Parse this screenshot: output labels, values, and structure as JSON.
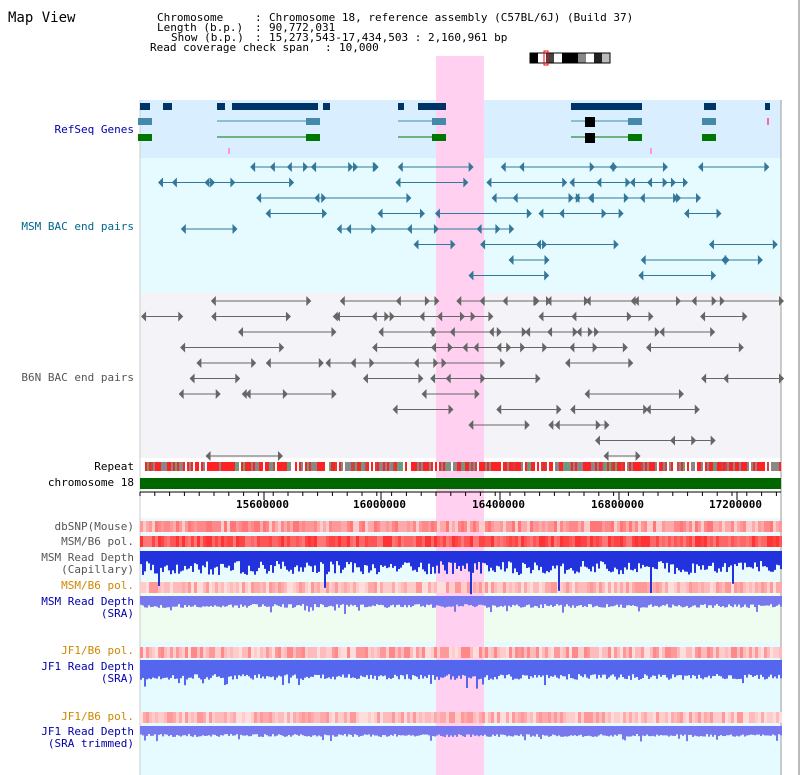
{
  "title": "Map View",
  "info": {
    "chromosome_key": "Chromosome",
    "chromosome_val": "Chromosome 18, reference assembly (C57BL/6J) (Build 37)",
    "length_key": "Length (b.p.)",
    "length_val": "90,772,031",
    "show_key": "Show (b.p.)",
    "show_val": "15,273,543-17,434,503 : 2,160,961 bp",
    "coverage_key": "Read coverage check span",
    "coverage_val": "10,000"
  },
  "tracks": {
    "refseq": "RefSeq Genes",
    "msm_bac": "MSM BAC end pairs",
    "b6n_bac": "B6N BAC end pairs",
    "repeat": "Repeat",
    "chromosome": "chromosome 18",
    "dbsnp": "dbSNP(Mouse)",
    "msm_b6_pol_1": "MSM/B6 pol.",
    "msm_depth_cap_1": "MSM Read Depth",
    "msm_depth_cap_2": "(Capillary)",
    "msm_b6_pol_2": "MSM/B6 pol.",
    "msm_depth_sra_1": "MSM Read Depth",
    "msm_depth_sra_2": "(SRA)",
    "jf1_b6_pol_1": "JF1/B6 pol.",
    "jf1_depth_sra_1": "JF1 Read Depth",
    "jf1_depth_sra_2": "(SRA)",
    "jf1_b6_pol_2": "JF1/B6 pol.",
    "jf1_depth_trim_1": "JF1 Read Depth",
    "jf1_depth_trim_2": "(SRA trimmed)"
  },
  "ruler": {
    "ticks": [
      "15600000",
      "16000000",
      "16400000",
      "16800000",
      "17200000"
    ]
  },
  "colors": {
    "label_blue": "#0000aa",
    "label_teal": "#006688",
    "label_gray": "#555555",
    "label_orange": "#cc8800",
    "highlight": "#ffd0f0",
    "chromosome_bar": "#006600"
  }
}
